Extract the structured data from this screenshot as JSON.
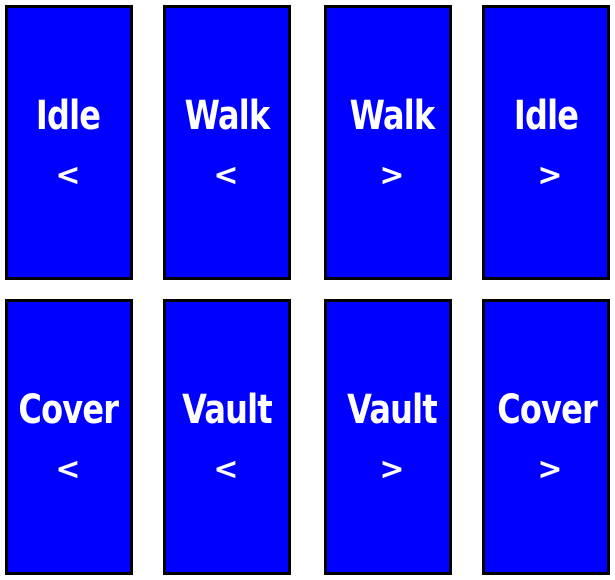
{
  "controls": {
    "row1": [
      {
        "label": "Idle",
        "arrow": "<"
      },
      {
        "label": "Walk",
        "arrow": "<"
      },
      {
        "label": "Walk",
        "arrow": ">"
      },
      {
        "label": "Idle",
        "arrow": ">"
      }
    ],
    "row2": [
      {
        "label": "Cover",
        "arrow": "<"
      },
      {
        "label": "Vault",
        "arrow": "<"
      },
      {
        "label": "Vault",
        "arrow": ">"
      },
      {
        "label": "Cover",
        "arrow": ">"
      }
    ]
  },
  "colors": {
    "card_fill": "#0000ff",
    "card_border": "#000000",
    "text": "#ffffff",
    "background": "#ffffff"
  }
}
